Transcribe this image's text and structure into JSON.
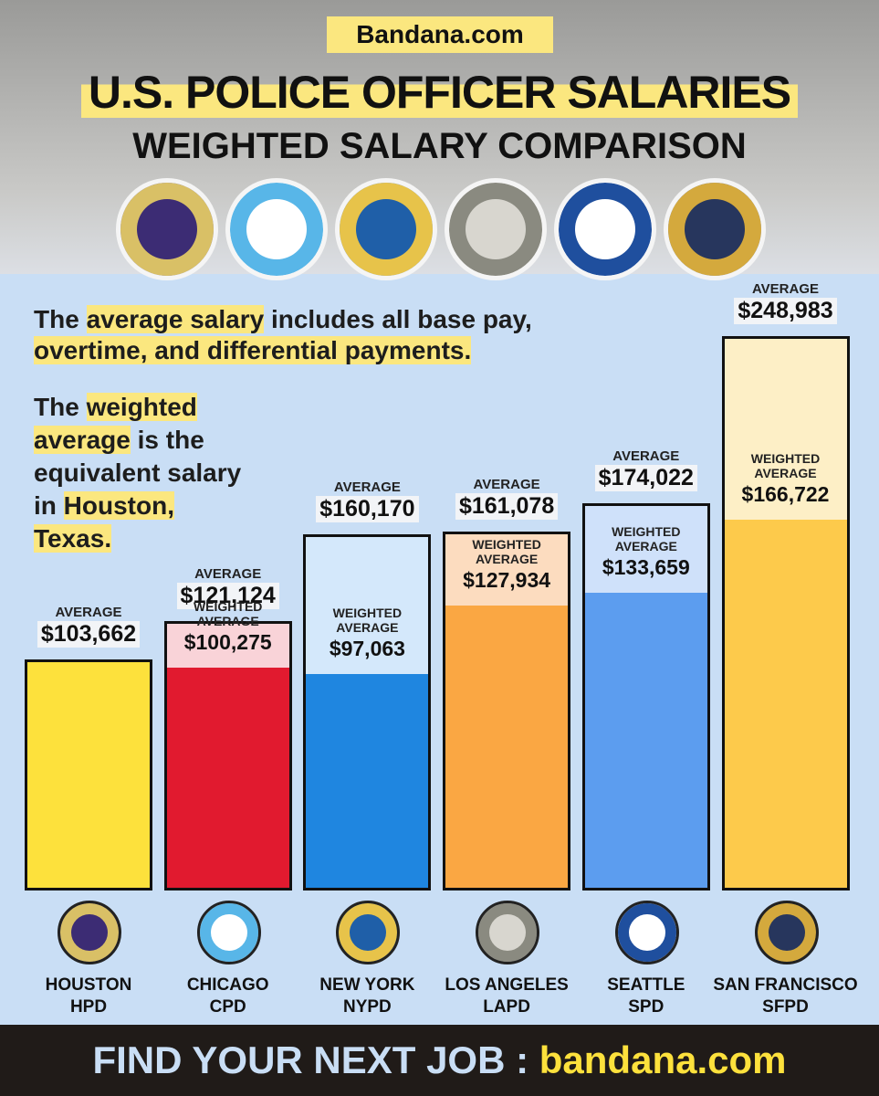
{
  "header": {
    "brand": "Bandana.com"
  },
  "chart_data": {
    "type": "bar",
    "title": "U.S. POLICE OFFICER SALARIES",
    "subtitle": "WEIGHTED SALARY COMPARISON",
    "categories": [
      "HOUSTON",
      "CHICAGO",
      "NEW YORK",
      "LOS ANGELES",
      "SEATTLE",
      "SAN FRANCISCO"
    ],
    "codes": [
      "HPD",
      "CPD",
      "NYPD",
      "LAPD",
      "SPD",
      "SFPD"
    ],
    "series": [
      {
        "name": "AVERAGE",
        "colors": [
          "#fde13c",
          "#f9d3d8",
          "#d4e8fb",
          "#fcdcbf",
          "#cfe1fa",
          "#fdefc6"
        ],
        "values": [
          103662,
          121124,
          160170,
          161078,
          174022,
          248983
        ],
        "value_labels": [
          "$103,662",
          "$121,124",
          "$160,170",
          "$161,078",
          "$174,022",
          "$248,983"
        ]
      },
      {
        "name": "WEIGHTED AVERAGE",
        "colors": [
          "#fde13c",
          "#e11a2f",
          "#1f86e0",
          "#faa743",
          "#5c9def",
          "#fdca4b"
        ],
        "values": [
          null,
          100275,
          97063,
          127934,
          133659,
          166722
        ],
        "value_labels": [
          null,
          "$100,275",
          "$97,063",
          "$127,934",
          "$133,659",
          "$166,722"
        ]
      }
    ]
  },
  "notes": {
    "note1": [
      "The ",
      "average salary",
      " includes all base pay,",
      "overtime, and differential payments."
    ],
    "note2": [
      "The ",
      "weighted average",
      " is the equivalent salary in ",
      "Houston, Texas."
    ]
  },
  "footer": {
    "text": "FIND YOUR NEXT JOB : ",
    "link": "bandana.com"
  }
}
